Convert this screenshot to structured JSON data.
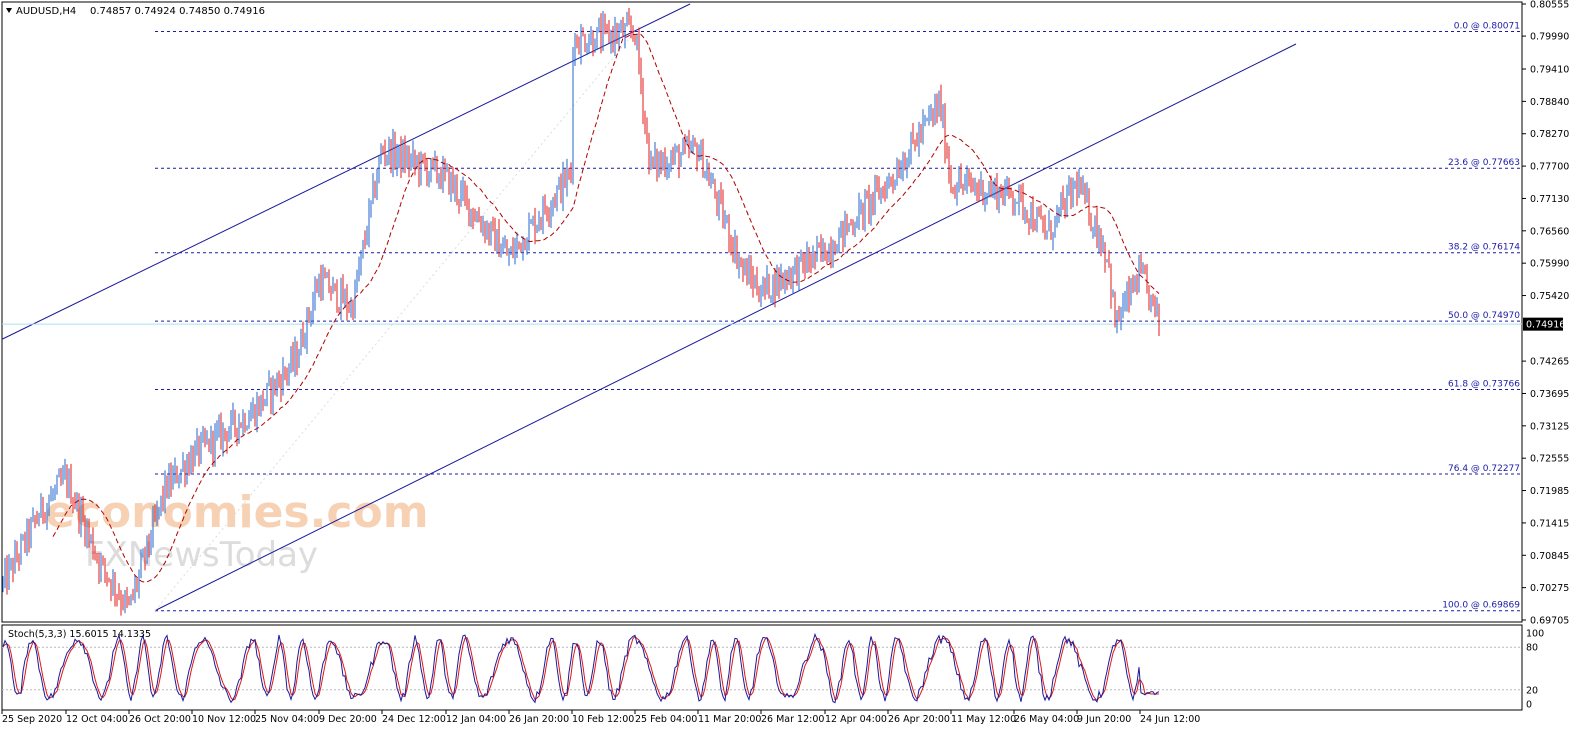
{
  "header": {
    "symbol": "AUDUSD,H4",
    "values": "0.74857 0.74924 0.74850 0.74916"
  },
  "watermark": {
    "line1": "economies.com",
    "line2": "FXNewsToday"
  },
  "current_price_tag": "0.74916",
  "price_axis_ticks": [
    "0.80555",
    "0.79990",
    "0.79410",
    "0.78840",
    "0.78270",
    "0.77700",
    "0.77130",
    "0.76560",
    "0.75990",
    "0.75420",
    "0.74916",
    "0.74265",
    "0.73695",
    "0.73125",
    "0.72555",
    "0.71985",
    "0.71415",
    "0.70845",
    "0.70275",
    "0.69705"
  ],
  "time_axis_ticks": [
    "25 Sep 2020",
    "12 Oct 04:00",
    "26 Oct 20:00",
    "10 Nov 12:00",
    "25 Nov 04:00",
    "9 Dec 20:00",
    "24 Dec 12:00",
    "12 Jan 04:00",
    "26 Jan 20:00",
    "10 Feb 12:00",
    "25 Feb 04:00",
    "11 Mar 20:00",
    "26 Mar 12:00",
    "12 Apr 04:00",
    "26 Apr 20:00",
    "11 May 12:00",
    "26 May 04:00",
    "9 Jun 20:00",
    "24 Jun 12:00"
  ],
  "fib_levels": [
    {
      "label": "0.0 @ 0.80071",
      "price": 0.80071
    },
    {
      "label": "23.6 @ 0.77663",
      "price": 0.77663
    },
    {
      "label": "38.2 @ 0.76174",
      "price": 0.76174
    },
    {
      "label": "50.0 @ 0.74970",
      "price": 0.7497
    },
    {
      "label": "61.8 @ 0.73766",
      "price": 0.73766
    },
    {
      "label": "76.4 @ 0.72277",
      "price": 0.72277
    },
    {
      "label": "100.0 @ 0.69869",
      "price": 0.69869
    }
  ],
  "stoch": {
    "label": "Stoch(5,3,3) 15.6015 14.1335",
    "ticks": [
      "100",
      "80",
      "20",
      "0"
    ],
    "levels": [
      80,
      20
    ],
    "main_value": 15.6015,
    "signal_value": 14.1335
  },
  "colors": {
    "bull": "#2266cc",
    "bear": "#e01818",
    "channel": "#1a1a9a",
    "fib": "#1a1aa8",
    "ma": "#b00000",
    "stoch_main": "#1a1a9a",
    "stoch_signal": "#e01818",
    "price_line": "#a6e0f0"
  },
  "chart_data": {
    "type": "candlestick",
    "symbol": "AUDUSD",
    "timeframe": "H4",
    "last_close": 0.74916,
    "ylim": [
      0.69705,
      0.80555
    ],
    "x_ticks": [
      "25 Sep 2020",
      "12 Oct 04:00",
      "26 Oct 20:00",
      "10 Nov 12:00",
      "25 Nov 04:00",
      "9 Dec 20:00",
      "24 Dec 12:00",
      "12 Jan 04:00",
      "26 Jan 20:00",
      "10 Feb 12:00",
      "25 Feb 04:00",
      "11 Mar 20:00",
      "26 Mar 12:00",
      "12 Apr 04:00",
      "26 Apr 20:00",
      "11 May 12:00",
      "26 May 04:00",
      "9 Jun 20:00",
      "24 Jun 12:00"
    ],
    "price_path": [
      {
        "x": "25 Sep 2020",
        "y": 0.703
      },
      {
        "x": "5 Oct",
        "y": 0.716
      },
      {
        "x": "12 Oct 04:00",
        "y": 0.722
      },
      {
        "x": "20 Oct",
        "y": 0.707
      },
      {
        "x": "26 Oct 20:00",
        "y": 0.699
      },
      {
        "x": "3 Nov",
        "y": 0.72
      },
      {
        "x": "10 Nov 12:00",
        "y": 0.726
      },
      {
        "x": "25 Nov 04:00",
        "y": 0.734
      },
      {
        "x": "4 Dec",
        "y": 0.743
      },
      {
        "x": "9 Dec 20:00",
        "y": 0.757
      },
      {
        "x": "15 Dec",
        "y": 0.752
      },
      {
        "x": "24 Dec 12:00",
        "y": 0.78
      },
      {
        "x": "12 Jan 04:00",
        "y": 0.775
      },
      {
        "x": "26 Jan 20:00",
        "y": 0.761
      },
      {
        "x": "10 Feb 12:00",
        "y": 0.776
      },
      {
        "x": "17 Feb",
        "y": 0.784
      },
      {
        "x": "25 Feb 04:00",
        "y": 0.8007
      },
      {
        "x": "1 Mar",
        "y": 0.777
      },
      {
        "x": "11 Mar 20:00",
        "y": 0.78
      },
      {
        "x": "20 Mar",
        "y": 0.759
      },
      {
        "x": "26 Mar 12:00",
        "y": 0.755
      },
      {
        "x": "12 Apr 04:00",
        "y": 0.762
      },
      {
        "x": "26 Apr 20:00",
        "y": 0.774
      },
      {
        "x": "8 May",
        "y": 0.788
      },
      {
        "x": "11 May 12:00",
        "y": 0.774
      },
      {
        "x": "26 May 04:00",
        "y": 0.772
      },
      {
        "x": "3 Jun",
        "y": 0.765
      },
      {
        "x": "9 Jun 20:00",
        "y": 0.774
      },
      {
        "x": "17 Jun",
        "y": 0.761
      },
      {
        "x": "21 Jun",
        "y": 0.749
      },
      {
        "x": "24 Jun 12:00",
        "y": 0.758
      },
      {
        "x": "last",
        "y": 0.74916
      }
    ],
    "fibonacci": [
      {
        "level": 0.0,
        "price": 0.80071
      },
      {
        "level": 23.6,
        "price": 0.77663
      },
      {
        "level": 38.2,
        "price": 0.76174
      },
      {
        "level": 50.0,
        "price": 0.7497
      },
      {
        "level": 61.8,
        "price": 0.73766
      },
      {
        "level": 76.4,
        "price": 0.72277
      },
      {
        "level": 100.0,
        "price": 0.69869
      }
    ],
    "ascending_channel": [
      {
        "name": "upper",
        "from": {
          "x": "25 Sep 2020",
          "y": 0.7465
        },
        "to": {
          "x": "25 Feb 04:00",
          "y": 0.8055
        }
      },
      {
        "name": "lower",
        "from": {
          "x": "26 Oct 20:00",
          "y": 0.6987
        },
        "to": {
          "x": "24 Jun 12:00",
          "y": 0.7985
        }
      }
    ],
    "stochastic": {
      "main": 15.6015,
      "signal": 14.1335,
      "overbought": 80,
      "oversold": 20,
      "range": [
        0,
        100
      ]
    },
    "grid": false
  }
}
